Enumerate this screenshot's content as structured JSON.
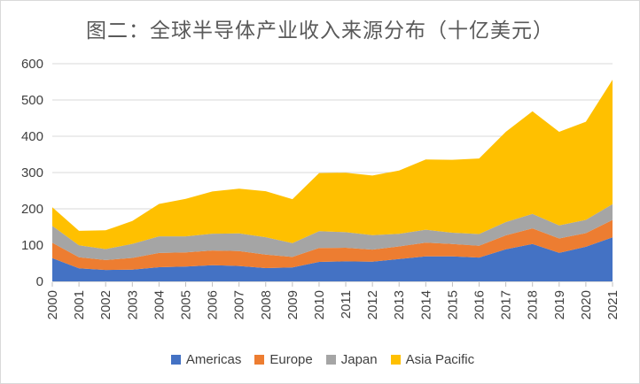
{
  "window": {
    "background": "#ffffff",
    "border_color": "#d9d9d9"
  },
  "chart_data": {
    "type": "area",
    "stacked": true,
    "title": "图二：全球半导体产业收入来源分布（十亿美元）",
    "title_color": "#595959",
    "categories": [
      "2000",
      "2001",
      "2002",
      "2003",
      "2004",
      "2005",
      "2006",
      "2007",
      "2008",
      "2009",
      "2010",
      "2011",
      "2012",
      "2013",
      "2014",
      "2015",
      "2016",
      "2017",
      "2018",
      "2019",
      "2020",
      "2021"
    ],
    "series": [
      {
        "name": "Americas",
        "color": "#4472C4",
        "values": [
          64.1,
          35.8,
          31.4,
          32.3,
          39.0,
          40.7,
          44.7,
          42.4,
          36.6,
          38.4,
          53.7,
          55.2,
          54.4,
          61.5,
          69.0,
          68.8,
          65.5,
          88.5,
          103.0,
          78.6,
          95.4,
          121.5
        ]
      },
      {
        "name": "Europe",
        "color": "#ED7D31",
        "values": [
          42.3,
          30.6,
          27.3,
          32.3,
          39.4,
          39.3,
          40.4,
          41.0,
          37.3,
          28.9,
          38.3,
          37.5,
          33.2,
          34.9,
          37.5,
          34.3,
          32.7,
          38.3,
          43.0,
          39.8,
          37.5,
          47.8
        ]
      },
      {
        "name": "Japan",
        "color": "#A5A5A5",
        "values": [
          46.7,
          33.1,
          30.4,
          38.9,
          45.8,
          44.2,
          46.4,
          48.9,
          47.7,
          38.3,
          46.6,
          43.0,
          39.9,
          34.8,
          35.9,
          31.0,
          32.3,
          36.6,
          40.0,
          36.0,
          36.5,
          43.7
        ]
      },
      {
        "name": "Asia Pacific",
        "color": "#FFC000",
        "values": [
          51.3,
          39.8,
          51.6,
          62.8,
          89.1,
          103.4,
          116.2,
          123.3,
          127.0,
          120.9,
          159.9,
          163.8,
          164.1,
          174.4,
          193.4,
          201.1,
          208.4,
          248.8,
          282.9,
          257.7,
          270.6,
          342.9
        ]
      }
    ],
    "xlabel": "",
    "ylabel": "",
    "ylim": [
      0,
      600
    ],
    "yticks": [
      0,
      100,
      200,
      300,
      400,
      500,
      600
    ],
    "grid": true,
    "gridline_color": "#d9d9d9",
    "tick_color": "#bfbfbf",
    "axis_text_color": "#404040",
    "legend_position": "bottom"
  }
}
